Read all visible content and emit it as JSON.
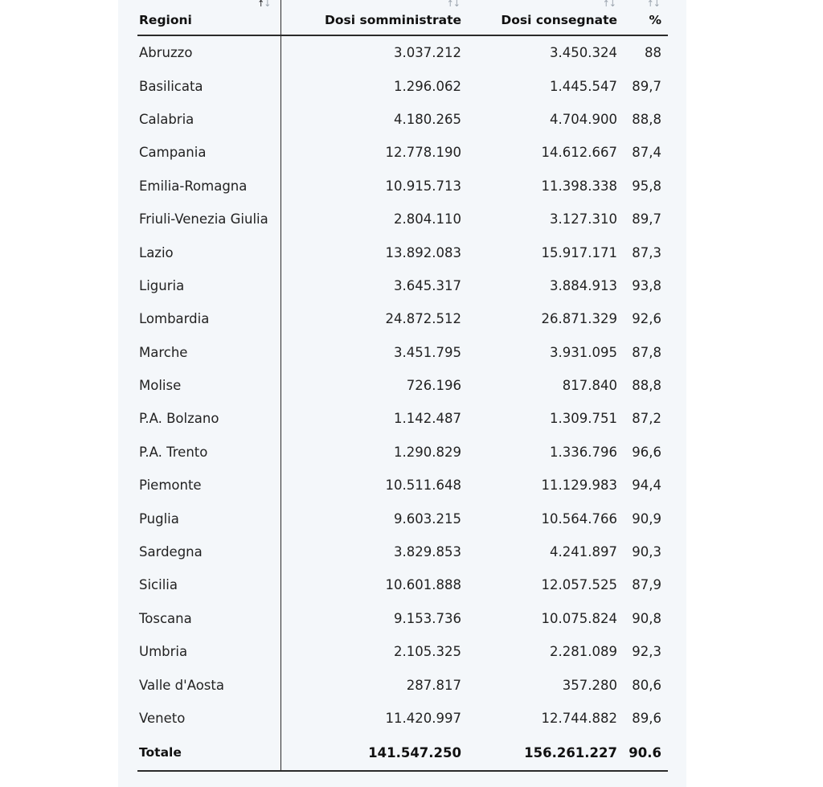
{
  "table": {
    "headers": {
      "region": "Regioni",
      "administered": "Dosi somministrate",
      "delivered": "Dosi consegnate",
      "percent": "%"
    },
    "sort_icon": {
      "up": "↑",
      "down": "↓"
    },
    "rows": [
      {
        "region": "Abruzzo",
        "administered": "3.037.212",
        "delivered": "3.450.324",
        "percent": "88"
      },
      {
        "region": "Basilicata",
        "administered": "1.296.062",
        "delivered": "1.445.547",
        "percent": "89,7"
      },
      {
        "region": "Calabria",
        "administered": "4.180.265",
        "delivered": "4.704.900",
        "percent": "88,8"
      },
      {
        "region": "Campania",
        "administered": "12.778.190",
        "delivered": "14.612.667",
        "percent": "87,4"
      },
      {
        "region": "Emilia-Romagna",
        "administered": "10.915.713",
        "delivered": "11.398.338",
        "percent": "95,8"
      },
      {
        "region": "Friuli-Venezia Giulia",
        "administered": "2.804.110",
        "delivered": "3.127.310",
        "percent": "89,7"
      },
      {
        "region": "Lazio",
        "administered": "13.892.083",
        "delivered": "15.917.171",
        "percent": "87,3"
      },
      {
        "region": "Liguria",
        "administered": "3.645.317",
        "delivered": "3.884.913",
        "percent": "93,8"
      },
      {
        "region": "Lombardia",
        "administered": "24.872.512",
        "delivered": "26.871.329",
        "percent": "92,6"
      },
      {
        "region": "Marche",
        "administered": "3.451.795",
        "delivered": "3.931.095",
        "percent": "87,8"
      },
      {
        "region": "Molise",
        "administered": "726.196",
        "delivered": "817.840",
        "percent": "88,8"
      },
      {
        "region": "P.A. Bolzano",
        "administered": "1.142.487",
        "delivered": "1.309.751",
        "percent": "87,2"
      },
      {
        "region": "P.A. Trento",
        "administered": "1.290.829",
        "delivered": "1.336.796",
        "percent": "96,6"
      },
      {
        "region": "Piemonte",
        "administered": "10.511.648",
        "delivered": "11.129.983",
        "percent": "94,4"
      },
      {
        "region": "Puglia",
        "administered": "9.603.215",
        "delivered": "10.564.766",
        "percent": "90,9"
      },
      {
        "region": "Sardegna",
        "administered": "3.829.853",
        "delivered": "4.241.897",
        "percent": "90,3"
      },
      {
        "region": "Sicilia",
        "administered": "10.601.888",
        "delivered": "12.057.525",
        "percent": "87,9"
      },
      {
        "region": "Toscana",
        "administered": "9.153.736",
        "delivered": "10.075.824",
        "percent": "90,8"
      },
      {
        "region": "Umbria",
        "administered": "2.105.325",
        "delivered": "2.281.089",
        "percent": "92,3"
      },
      {
        "region": "Valle d'Aosta",
        "administered": "287.817",
        "delivered": "357.280",
        "percent": "80,6"
      },
      {
        "region": "Veneto",
        "administered": "11.420.997",
        "delivered": "12.744.882",
        "percent": "89,6"
      }
    ],
    "total": {
      "label": "Totale",
      "administered": "141.547.250",
      "delivered": "156.261.227",
      "percent": "90.6"
    }
  }
}
